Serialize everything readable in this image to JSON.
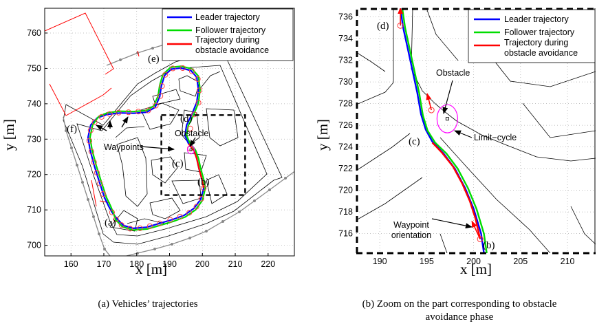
{
  "chart_data": [
    {
      "id": "a",
      "type": "line",
      "title": "",
      "caption": "(a)  Vehicles’ trajectories",
      "xlabel": "x [m]",
      "ylabel": "y [m]",
      "xlim": [
        152,
        228
      ],
      "ylim": [
        697,
        767
      ],
      "xticks": [
        160,
        170,
        180,
        190,
        200,
        210,
        220
      ],
      "yticks": [
        700,
        710,
        720,
        730,
        740,
        750,
        760
      ],
      "grid": true,
      "legend_position": "top-right",
      "colors": {
        "leader": "#0000ff",
        "follower": "#00dd00",
        "avoidance": "#ff0000",
        "limit_cycle": "#ff00ff"
      },
      "series": [
        {
          "name": "Leader trajectory",
          "points": [
            [
              171.5,
              711
            ],
            [
              170.2,
              713.5
            ],
            [
              168.6,
              718
            ],
            [
              167.1,
              722.5
            ],
            [
              165.8,
              727
            ],
            [
              165.2,
              730.5
            ],
            [
              166,
              734
            ],
            [
              168,
              736
            ],
            [
              171,
              737
            ],
            [
              175,
              737.4
            ],
            [
              179,
              737.3
            ],
            [
              183,
              737.6
            ],
            [
              185.6,
              739
            ],
            [
              187,
              742
            ],
            [
              187.5,
              745
            ],
            [
              188.5,
              748
            ],
            [
              190.5,
              749.8
            ],
            [
              193.5,
              750.1
            ],
            [
              196.5,
              749.4
            ],
            [
              198.3,
              747.5
            ],
            [
              198.8,
              744
            ],
            [
              198.3,
              740.5
            ],
            [
              196.8,
              737
            ],
            [
              195.2,
              734
            ],
            [
              194.7,
              731
            ],
            [
              195.8,
              728.7
            ],
            [
              197.5,
              726.7
            ],
            [
              198.3,
              724.5
            ],
            [
              199,
              721.5
            ],
            [
              199.9,
              718.5
            ],
            [
              200.4,
              716.2
            ],
            [
              199.5,
              713
            ],
            [
              197.5,
              710.5
            ],
            [
              194.5,
              708.5
            ],
            [
              191,
              707.3
            ],
            [
              187,
              706.2
            ],
            [
              183,
              705.1
            ],
            [
              179,
              704.8
            ],
            [
              176,
              705.6
            ],
            [
              174,
              707.5
            ],
            [
              172.5,
              709.3
            ],
            [
              171.5,
              711
            ]
          ]
        },
        {
          "name": "Follower trajectory",
          "points": [
            [
              172.1,
              711
            ],
            [
              170.8,
              713.5
            ],
            [
              169.2,
              718
            ],
            [
              167.7,
              722.5
            ],
            [
              166.4,
              727
            ],
            [
              165.8,
              730.5
            ],
            [
              166.6,
              734
            ],
            [
              168.4,
              736.4
            ],
            [
              171.2,
              737.5
            ],
            [
              175,
              737.9
            ],
            [
              179,
              737.8
            ],
            [
              183,
              738.1
            ],
            [
              185.2,
              739.4
            ],
            [
              186.5,
              742.2
            ],
            [
              187,
              745.2
            ],
            [
              188,
              748.3
            ],
            [
              190.3,
              750.3
            ],
            [
              193.5,
              750.6
            ],
            [
              196.8,
              749.9
            ],
            [
              198.8,
              747.8
            ],
            [
              199.3,
              744
            ],
            [
              198.8,
              740.3
            ],
            [
              197.3,
              736.8
            ],
            [
              195.7,
              733.8
            ],
            [
              195.2,
              731
            ],
            [
              196.2,
              728.9
            ],
            [
              197.9,
              726.9
            ],
            [
              198.8,
              724.6
            ],
            [
              199.5,
              721.6
            ],
            [
              200.4,
              718.6
            ],
            [
              200.9,
              716.2
            ],
            [
              200,
              712.7
            ],
            [
              197.9,
              710
            ],
            [
              194.8,
              708
            ],
            [
              191.3,
              706.8
            ],
            [
              187.3,
              705.7
            ],
            [
              183.2,
              704.6
            ],
            [
              179,
              704.3
            ],
            [
              175.7,
              705.2
            ],
            [
              173.6,
              707.2
            ],
            [
              172.9,
              709.2
            ],
            [
              172.1,
              711
            ]
          ]
        },
        {
          "name": "Trajectory during obstacle avoidance",
          "points": [
            [
              200.4,
              716.2
            ],
            [
              199.9,
              718.5
            ],
            [
              199,
              721.5
            ],
            [
              198.3,
              724.5
            ],
            [
              197.5,
              726.7
            ],
            [
              195.8,
              728.7
            ]
          ]
        }
      ],
      "waypoints_xy": [
        [
          172.5,
          709.3
        ],
        [
          173.7,
          707.3
        ],
        [
          175.4,
          705.7
        ],
        [
          178,
          704.7
        ],
        [
          181,
          704.8
        ],
        [
          184,
          705.4
        ],
        [
          187,
          706.2
        ],
        [
          190.2,
          707.2
        ],
        [
          193.2,
          708.1
        ],
        [
          196,
          709.2
        ],
        [
          198.2,
          710.9
        ],
        [
          199.7,
          713.2
        ],
        [
          200.4,
          716.2
        ],
        [
          196.2,
          727.4
        ],
        [
          196.3,
          733
        ],
        [
          197.5,
          737
        ],
        [
          198.8,
          740.3
        ],
        [
          199.1,
          743.8
        ],
        [
          198.6,
          747
        ],
        [
          196.8,
          749.2
        ],
        [
          194,
          750.1
        ],
        [
          191,
          750
        ],
        [
          188.7,
          748.2
        ],
        [
          187.7,
          745
        ],
        [
          187.2,
          742.2
        ],
        [
          185.8,
          739.5
        ],
        [
          183.5,
          738.1
        ],
        [
          180.5,
          737.8
        ],
        [
          177.5,
          737.6
        ],
        [
          174.5,
          737.5
        ],
        [
          171.8,
          737.1
        ],
        [
          169.3,
          736.3
        ],
        [
          167.2,
          734.8
        ],
        [
          166,
          732.5
        ],
        [
          165.6,
          729.5
        ],
        [
          166.2,
          726.5
        ],
        [
          167,
          723.5
        ],
        [
          167.9,
          720.5
        ],
        [
          168.8,
          717.5
        ],
        [
          169.8,
          714.5
        ]
      ],
      "obstacle_xy": [
        196.5,
        727
      ],
      "annotations": {
        "a": "(a)",
        "b": "(b)",
        "c": "(c)",
        "d": "(d)",
        "e": "(e)",
        "f": "(f)",
        "obstacle": "Obstacle",
        "waypoints": "Waypoints"
      }
    },
    {
      "id": "b",
      "type": "line",
      "title": "",
      "caption_line1": "(b)  Zoom on the part corresponding to obstacle",
      "caption_line2": "avoidance phase",
      "xlabel": "x [m]",
      "ylabel": "y [m]",
      "xlim": [
        187.5,
        213
      ],
      "ylim": [
        714.2,
        736.8
      ],
      "xticks": [
        190,
        195,
        200,
        205,
        210
      ],
      "yticks": [
        716,
        718,
        720,
        722,
        724,
        726,
        728,
        730,
        732,
        734,
        736
      ],
      "grid": true,
      "legend_position": "top-right",
      "colors": {
        "leader": "#0000ff",
        "follower": "#00dd00",
        "avoidance": "#ff0000",
        "limit_cycle": "#ff00ff"
      },
      "series": [
        {
          "name": "Leader trajectory",
          "points": [
            [
              201.1,
              714.2
            ],
            [
              200.8,
              716
            ],
            [
              200,
              718.3
            ],
            [
              199.1,
              720.2
            ],
            [
              198,
              722
            ],
            [
              196.8,
              723.4
            ],
            [
              195.6,
              724.5
            ],
            [
              194.9,
              725.6
            ],
            [
              194.4,
              727
            ],
            [
              194,
              729
            ],
            [
              193.5,
              731
            ],
            [
              193,
              733
            ],
            [
              192.5,
              735
            ],
            [
              192.2,
              736.8
            ]
          ]
        },
        {
          "name": "Follower trajectory",
          "points": [
            [
              201.4,
              714.2
            ],
            [
              201.1,
              716
            ],
            [
              200.3,
              718.3
            ],
            [
              199.4,
              720.2
            ],
            [
              198.3,
              722
            ],
            [
              197.1,
              723.4
            ],
            [
              195.9,
              724.4
            ],
            [
              195.1,
              725.5
            ],
            [
              194.6,
              726.9
            ],
            [
              194.2,
              729
            ],
            [
              193.7,
              731
            ],
            [
              193.2,
              733
            ],
            [
              192.7,
              735
            ],
            [
              192.4,
              736.8
            ]
          ]
        },
        {
          "name": "Trajectory during obstacle avoidance",
          "points": [
            [
              200.7,
              715.5
            ],
            [
              200.2,
              717.4
            ],
            [
              199.6,
              719
            ],
            [
              198.8,
              720.6
            ],
            [
              197.8,
              722.2
            ],
            [
              196.6,
              723.5
            ],
            [
              195.6,
              724.4
            ]
          ]
        }
      ],
      "waypoints_xy": [
        [
          200.7,
          715.5
        ],
        [
          195.5,
          727.4
        ],
        [
          192.2,
          735.2
        ]
      ],
      "obstacle_xy": [
        197.2,
        726.6
      ],
      "limit_cycle": {
        "cx": 197.2,
        "cy": 726.6,
        "rx": 1.1,
        "ry": 1.3
      },
      "annotations": {
        "b": "(b)",
        "c": "(c)",
        "d": "(d)",
        "obstacle": "Obstacle",
        "limit_cycle": "Limit−cycle",
        "waypoint_orientation_line1": "Waypoint",
        "waypoint_orientation_line2": "orientation"
      }
    }
  ]
}
